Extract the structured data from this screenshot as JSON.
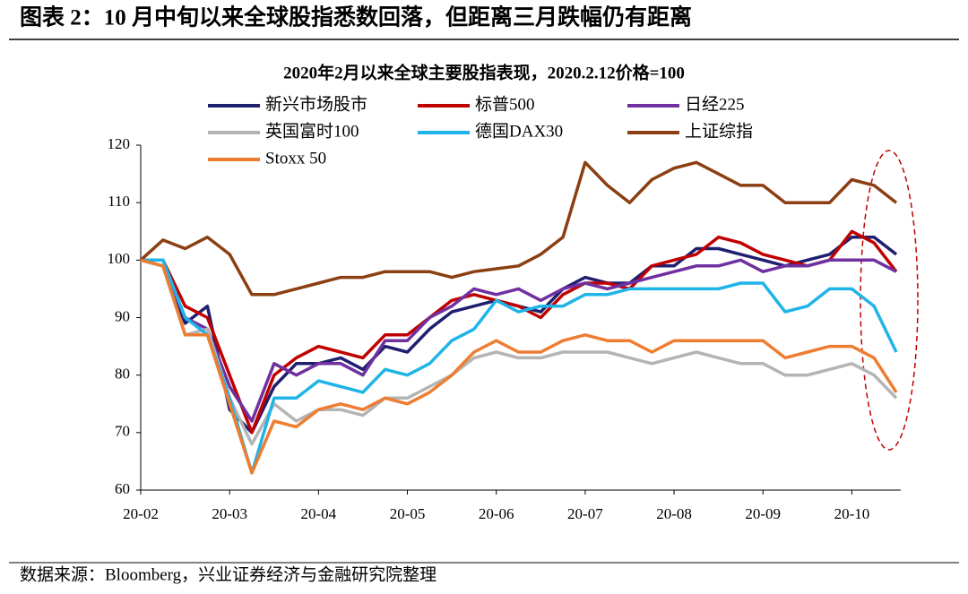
{
  "chart_data": {
    "type": "line",
    "title": "图表 2：10 月中旬以来全球股指悉数回落，但距离三月跌幅仍有距离",
    "subtitle": "2020年2月以来全球主要股指表现，2020.2.12价格=100",
    "source": "数据来源：Bloomberg，兴业证券经济与金融研究院整理",
    "categories": [
      "20-02",
      null,
      null,
      null,
      "20-03",
      null,
      null,
      null,
      "20-04",
      null,
      null,
      null,
      "20-05",
      null,
      null,
      null,
      "20-06",
      null,
      null,
      null,
      "20-07",
      null,
      null,
      null,
      "20-08",
      null,
      null,
      null,
      "20-09",
      null,
      null,
      null,
      "20-10",
      null,
      null
    ],
    "ylim": [
      60,
      120
    ],
    "yticks": [
      60,
      70,
      80,
      90,
      100,
      110,
      120
    ],
    "grid": false,
    "series": [
      {
        "name": "新兴市场股市",
        "color": "#1f1f70",
        "values": [
          100,
          99,
          89,
          92,
          74,
          70,
          78,
          82,
          82,
          83,
          81,
          85,
          84,
          88,
          91,
          92,
          93,
          92,
          91,
          95,
          97,
          96,
          96,
          99,
          99,
          102,
          102,
          101,
          100,
          99,
          100,
          101,
          104,
          104,
          101
        ]
      },
      {
        "name": "标普500",
        "color": "#c00000",
        "values": [
          100,
          100,
          92,
          90,
          80,
          70,
          80,
          83,
          85,
          84,
          83,
          87,
          87,
          90,
          93,
          94,
          93,
          92,
          90,
          94,
          96,
          96,
          95,
          99,
          100,
          101,
          104,
          103,
          101,
          100,
          99,
          100,
          105,
          103,
          98
        ]
      },
      {
        "name": "日经225",
        "color": "#7030a0",
        "values": [
          100,
          99,
          90,
          88,
          78,
          72,
          82,
          80,
          82,
          82,
          80,
          86,
          86,
          90,
          92,
          95,
          94,
          95,
          93,
          95,
          96,
          95,
          96,
          97,
          98,
          99,
          99,
          100,
          98,
          99,
          99,
          100,
          100,
          100,
          98
        ]
      },
      {
        "name": "英国富时100",
        "color": "#b4b4b4",
        "values": [
          100,
          99,
          87,
          88,
          76,
          68,
          75,
          72,
          74,
          74,
          73,
          76,
          76,
          78,
          80,
          83,
          84,
          83,
          83,
          84,
          84,
          84,
          83,
          82,
          83,
          84,
          83,
          82,
          82,
          80,
          80,
          81,
          82,
          80,
          76
        ]
      },
      {
        "name": "德国DAX30",
        "color": "#1fb4e8",
        "values": [
          100,
          100,
          90,
          87,
          76,
          63,
          76,
          76,
          79,
          78,
          77,
          81,
          80,
          82,
          86,
          88,
          93,
          91,
          92,
          92,
          94,
          94,
          95,
          95,
          95,
          95,
          95,
          96,
          96,
          91,
          92,
          95,
          95,
          92,
          84
        ]
      },
      {
        "name": "上证综指",
        "color": "#8b3f12",
        "values": [
          100,
          103.5,
          102,
          104,
          101,
          94,
          94,
          95,
          96,
          97,
          97,
          98,
          98,
          98,
          97,
          98,
          98.5,
          99,
          101,
          104,
          117,
          113,
          110,
          114,
          116,
          117,
          115,
          113,
          113,
          110,
          110,
          110,
          114,
          113,
          110
        ]
      },
      {
        "name": "Stoxx 50",
        "color": "#ed7d31",
        "values": [
          100,
          99,
          87,
          87,
          75,
          63,
          72,
          71,
          74,
          75,
          74,
          76,
          75,
          77,
          80,
          84,
          86,
          84,
          84,
          86,
          87,
          86,
          86,
          84,
          86,
          86,
          86,
          86,
          86,
          83,
          84,
          85,
          85,
          83,
          77
        ]
      }
    ]
  }
}
